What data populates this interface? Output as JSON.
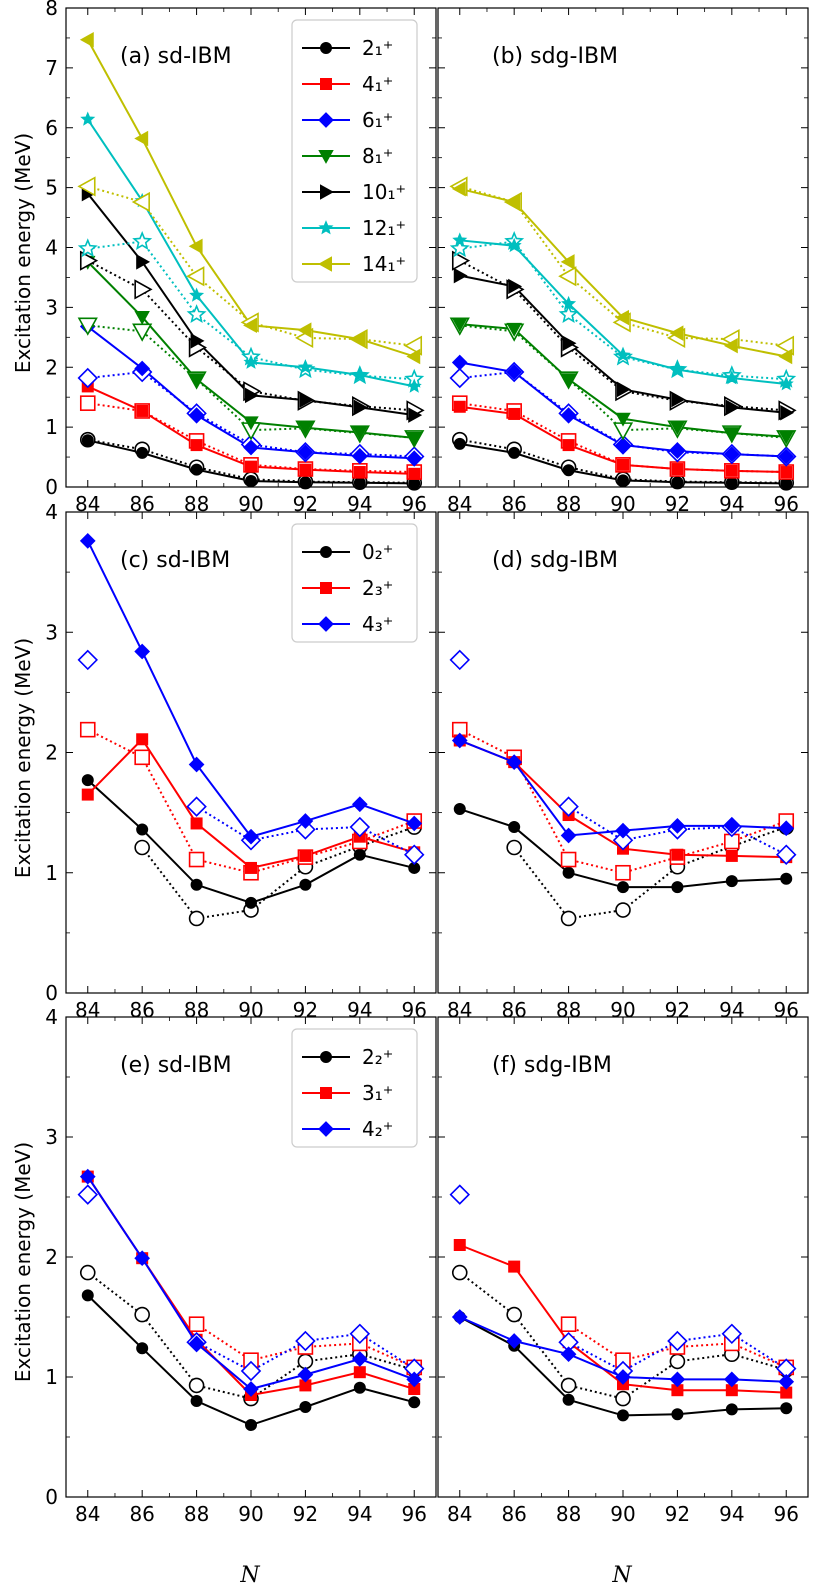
{
  "colors": {
    "2_1": "#000000",
    "4_1": "#ff0000",
    "6_1": "#0000ff",
    "8_1": "#008000",
    "10_1": "#000000",
    "12_1": "#00bfbf",
    "14_1": "#bfbf00",
    "0_2": "#000000",
    "2_3": "#ff0000",
    "4_3": "#0000ff",
    "2_2": "#000000",
    "3_1": "#ff0000",
    "4_2": "#0000ff"
  },
  "ylabel": "Excitation energy (MeV)",
  "xlabel": "N",
  "chart_data": [
    {
      "id": "a",
      "type": "line",
      "title": "(a) sd-IBM",
      "x": [
        84,
        86,
        88,
        90,
        92,
        94,
        96
      ],
      "ylim": [
        0,
        8
      ],
      "yticks": [
        "0",
        "1",
        "2",
        "3",
        "4",
        "5",
        "6",
        "7",
        "8"
      ],
      "xticks": [
        "84",
        "86",
        "88",
        "90",
        "92",
        "94",
        "96"
      ],
      "legend": [
        {
          "key": "2_1",
          "label": "2₁⁺",
          "marker": "circle"
        },
        {
          "key": "4_1",
          "label": "4₁⁺",
          "marker": "square"
        },
        {
          "key": "6_1",
          "label": "6₁⁺",
          "marker": "diamond"
        },
        {
          "key": "8_1",
          "label": "8₁⁺",
          "marker": "tri-down"
        },
        {
          "key": "10_1",
          "label": "10₁⁺",
          "marker": "tri-right"
        },
        {
          "key": "12_1",
          "label": "12₁⁺",
          "marker": "star"
        },
        {
          "key": "14_1",
          "label": "14₁⁺",
          "marker": "tri-left"
        }
      ],
      "series": [
        {
          "key": "2_1",
          "marker": "circle",
          "theory": [
            0.78,
            0.57,
            0.29,
            0.1,
            0.08,
            0.07,
            0.06
          ],
          "exp": [
            0.79,
            0.63,
            0.33,
            0.13,
            0.09,
            0.08,
            0.07
          ]
        },
        {
          "key": "4_1",
          "marker": "square",
          "theory": [
            1.68,
            1.27,
            0.7,
            0.34,
            0.29,
            0.25,
            0.22
          ],
          "exp": [
            1.4,
            1.27,
            0.77,
            0.37,
            0.3,
            0.27,
            0.25
          ]
        },
        {
          "key": "6_1",
          "marker": "diamond",
          "theory": [
            2.68,
            1.98,
            1.2,
            0.66,
            0.58,
            0.52,
            0.48
          ],
          "exp": [
            1.82,
            1.92,
            1.23,
            0.71,
            0.58,
            0.55,
            0.51
          ]
        },
        {
          "key": "8_1",
          "marker": "tri-down",
          "theory": [
            3.76,
            2.84,
            1.8,
            1.08,
            0.99,
            0.91,
            0.82
          ],
          "exp": [
            2.7,
            2.6,
            1.8,
            0.95,
            0.98,
            0.9,
            0.82
          ]
        },
        {
          "key": "10_1",
          "marker": "tri-right",
          "theory": [
            4.9,
            3.76,
            2.44,
            1.53,
            1.45,
            1.33,
            1.2
          ],
          "exp": [
            3.78,
            3.3,
            2.33,
            1.6,
            1.44,
            1.35,
            1.28
          ]
        },
        {
          "key": "12_1",
          "marker": "star",
          "theory": [
            6.14,
            4.78,
            3.2,
            2.08,
            2.0,
            1.87,
            1.68
          ],
          "exp": [
            3.98,
            4.1,
            2.88,
            2.17,
            1.96,
            1.86,
            1.8
          ]
        },
        {
          "key": "14_1",
          "marker": "tri-left",
          "theory": [
            7.47,
            5.82,
            4.02,
            2.7,
            2.62,
            2.47,
            2.18
          ],
          "exp": [
            5.02,
            4.76,
            3.52,
            2.75,
            2.49,
            2.47,
            2.36
          ]
        }
      ]
    },
    {
      "id": "b",
      "type": "line",
      "title": "(b) sdg-IBM",
      "x": [
        84,
        86,
        88,
        90,
        92,
        94,
        96
      ],
      "ylim": [
        0,
        8
      ],
      "yticks": [],
      "xticks": [
        "84",
        "86",
        "88",
        "90",
        "92",
        "94",
        "96"
      ],
      "legend": [],
      "series": [
        {
          "key": "2_1",
          "marker": "circle",
          "theory": [
            0.72,
            0.57,
            0.28,
            0.11,
            0.08,
            0.07,
            0.06
          ],
          "exp": [
            0.79,
            0.63,
            0.33,
            0.13,
            0.09,
            0.08,
            0.07
          ]
        },
        {
          "key": "4_1",
          "marker": "square",
          "theory": [
            1.34,
            1.22,
            0.7,
            0.37,
            0.3,
            0.27,
            0.25
          ],
          "exp": [
            1.4,
            1.27,
            0.77,
            0.37,
            0.3,
            0.27,
            0.25
          ]
        },
        {
          "key": "6_1",
          "marker": "diamond",
          "theory": [
            2.08,
            1.92,
            1.2,
            0.7,
            0.6,
            0.55,
            0.51
          ],
          "exp": [
            1.82,
            1.92,
            1.23,
            0.71,
            0.58,
            0.55,
            0.51
          ]
        },
        {
          "key": "8_1",
          "marker": "tri-down",
          "theory": [
            2.72,
            2.64,
            1.8,
            1.14,
            1.0,
            0.9,
            0.84
          ],
          "exp": [
            2.7,
            2.6,
            1.8,
            0.95,
            0.98,
            0.9,
            0.82
          ]
        },
        {
          "key": "10_1",
          "marker": "tri-right",
          "theory": [
            3.53,
            3.35,
            2.4,
            1.63,
            1.46,
            1.33,
            1.24
          ],
          "exp": [
            3.78,
            3.3,
            2.33,
            1.6,
            1.44,
            1.35,
            1.28
          ]
        },
        {
          "key": "12_1",
          "marker": "star",
          "theory": [
            4.12,
            4.03,
            3.06,
            2.2,
            1.96,
            1.82,
            1.72
          ],
          "exp": [
            3.98,
            4.1,
            2.88,
            2.17,
            1.96,
            1.86,
            1.8
          ]
        },
        {
          "key": "14_1",
          "marker": "tri-left",
          "theory": [
            4.98,
            4.76,
            3.76,
            2.83,
            2.57,
            2.36,
            2.18
          ],
          "exp": [
            5.02,
            4.76,
            3.52,
            2.75,
            2.49,
            2.47,
            2.36
          ]
        }
      ]
    },
    {
      "id": "c",
      "type": "line",
      "title": "(c) sd-IBM",
      "x": [
        84,
        86,
        88,
        90,
        92,
        94,
        96
      ],
      "ylim": [
        0,
        4
      ],
      "yticks": [
        "0",
        "1",
        "2",
        "3",
        "4"
      ],
      "xticks": [
        "84",
        "86",
        "88",
        "90",
        "92",
        "94",
        "96"
      ],
      "legend": [
        {
          "key": "0_2",
          "label": "0₂⁺",
          "marker": "circle"
        },
        {
          "key": "2_3",
          "label": "2₃⁺",
          "marker": "square"
        },
        {
          "key": "4_3",
          "label": "4₃⁺",
          "marker": "diamond"
        }
      ],
      "series": [
        {
          "key": "0_2",
          "marker": "circle",
          "theory": [
            1.77,
            1.36,
            0.9,
            0.75,
            0.9,
            1.15,
            1.04
          ],
          "exp": [
            null,
            1.21,
            0.62,
            0.69,
            1.05,
            1.22,
            1.38
          ]
        },
        {
          "key": "2_3",
          "marker": "square",
          "theory": [
            1.65,
            2.11,
            1.41,
            1.04,
            1.14,
            1.3,
            1.17
          ],
          "exp": [
            2.19,
            1.96,
            1.11,
            1.0,
            1.13,
            1.26,
            1.43
          ]
        },
        {
          "key": "4_3",
          "marker": "diamond",
          "theory": [
            3.76,
            2.84,
            1.9,
            1.3,
            1.43,
            1.57,
            1.41
          ],
          "exp": [
            2.77,
            null,
            1.55,
            1.27,
            1.36,
            1.38,
            1.15
          ]
        }
      ]
    },
    {
      "id": "d",
      "type": "line",
      "title": "(d) sdg-IBM",
      "x": [
        84,
        86,
        88,
        90,
        92,
        94,
        96
      ],
      "ylim": [
        0,
        4
      ],
      "yticks": [],
      "xticks": [
        "84",
        "86",
        "88",
        "90",
        "92",
        "94",
        "96"
      ],
      "legend": [],
      "series": [
        {
          "key": "0_2",
          "marker": "circle",
          "theory": [
            1.53,
            1.38,
            1.0,
            0.88,
            0.88,
            0.93,
            0.95
          ],
          "exp": [
            null,
            1.21,
            0.62,
            0.69,
            1.05,
            1.22,
            1.38
          ]
        },
        {
          "key": "2_3",
          "marker": "square",
          "theory": [
            2.1,
            1.92,
            1.48,
            1.2,
            1.15,
            1.14,
            1.13
          ],
          "exp": [
            2.19,
            1.96,
            1.11,
            1.0,
            1.13,
            1.26,
            1.43
          ]
        },
        {
          "key": "4_3",
          "marker": "diamond",
          "theory": [
            2.1,
            1.92,
            1.31,
            1.35,
            1.39,
            1.39,
            1.37
          ],
          "exp": [
            2.77,
            null,
            1.55,
            1.27,
            1.36,
            1.38,
            1.15
          ]
        }
      ]
    },
    {
      "id": "e",
      "type": "line",
      "title": "(e) sd-IBM",
      "x": [
        84,
        86,
        88,
        90,
        92,
        94,
        96
      ],
      "ylim": [
        0,
        4
      ],
      "yticks": [
        "0",
        "1",
        "2",
        "3",
        "4"
      ],
      "xticks": [
        "84",
        "86",
        "88",
        "90",
        "92",
        "94",
        "96"
      ],
      "legend": [
        {
          "key": "2_2",
          "label": "2₂⁺",
          "marker": "circle"
        },
        {
          "key": "3_1",
          "label": "3₁⁺",
          "marker": "square"
        },
        {
          "key": "4_2",
          "label": "4₂⁺",
          "marker": "diamond"
        }
      ],
      "series": [
        {
          "key": "2_2",
          "marker": "circle",
          "theory": [
            1.68,
            1.24,
            0.8,
            0.6,
            0.75,
            0.91,
            0.79
          ],
          "exp": [
            1.87,
            1.52,
            0.93,
            0.82,
            1.13,
            1.19,
            1.06
          ]
        },
        {
          "key": "3_1",
          "marker": "square",
          "theory": [
            2.67,
            1.99,
            1.31,
            0.85,
            0.93,
            1.04,
            0.9
          ],
          "exp": [
            null,
            null,
            1.44,
            1.14,
            1.25,
            1.28,
            1.08
          ]
        },
        {
          "key": "4_2",
          "marker": "diamond",
          "theory": [
            2.67,
            1.99,
            1.28,
            0.9,
            1.02,
            1.15,
            0.98
          ],
          "exp": [
            2.52,
            null,
            1.29,
            1.05,
            1.3,
            1.36,
            1.07
          ]
        }
      ]
    },
    {
      "id": "f",
      "type": "line",
      "title": "(f) sdg-IBM",
      "x": [
        84,
        86,
        88,
        90,
        92,
        94,
        96
      ],
      "ylim": [
        0,
        4
      ],
      "yticks": [],
      "xticks": [
        "84",
        "86",
        "88",
        "90",
        "92",
        "94",
        "96"
      ],
      "legend": [],
      "series": [
        {
          "key": "2_2",
          "marker": "circle",
          "theory": [
            1.5,
            1.26,
            0.81,
            0.68,
            0.69,
            0.73,
            0.74
          ],
          "exp": [
            1.87,
            1.52,
            0.93,
            0.82,
            1.13,
            1.19,
            1.06
          ]
        },
        {
          "key": "3_1",
          "marker": "square",
          "theory": [
            2.1,
            1.92,
            1.29,
            0.94,
            0.89,
            0.89,
            0.87
          ],
          "exp": [
            null,
            null,
            1.44,
            1.14,
            1.25,
            1.28,
            1.08
          ]
        },
        {
          "key": "4_2",
          "marker": "diamond",
          "theory": [
            1.5,
            1.3,
            1.19,
            1.0,
            0.98,
            0.98,
            0.96
          ],
          "exp": [
            2.52,
            null,
            1.29,
            1.05,
            1.3,
            1.36,
            1.07
          ]
        }
      ]
    }
  ]
}
